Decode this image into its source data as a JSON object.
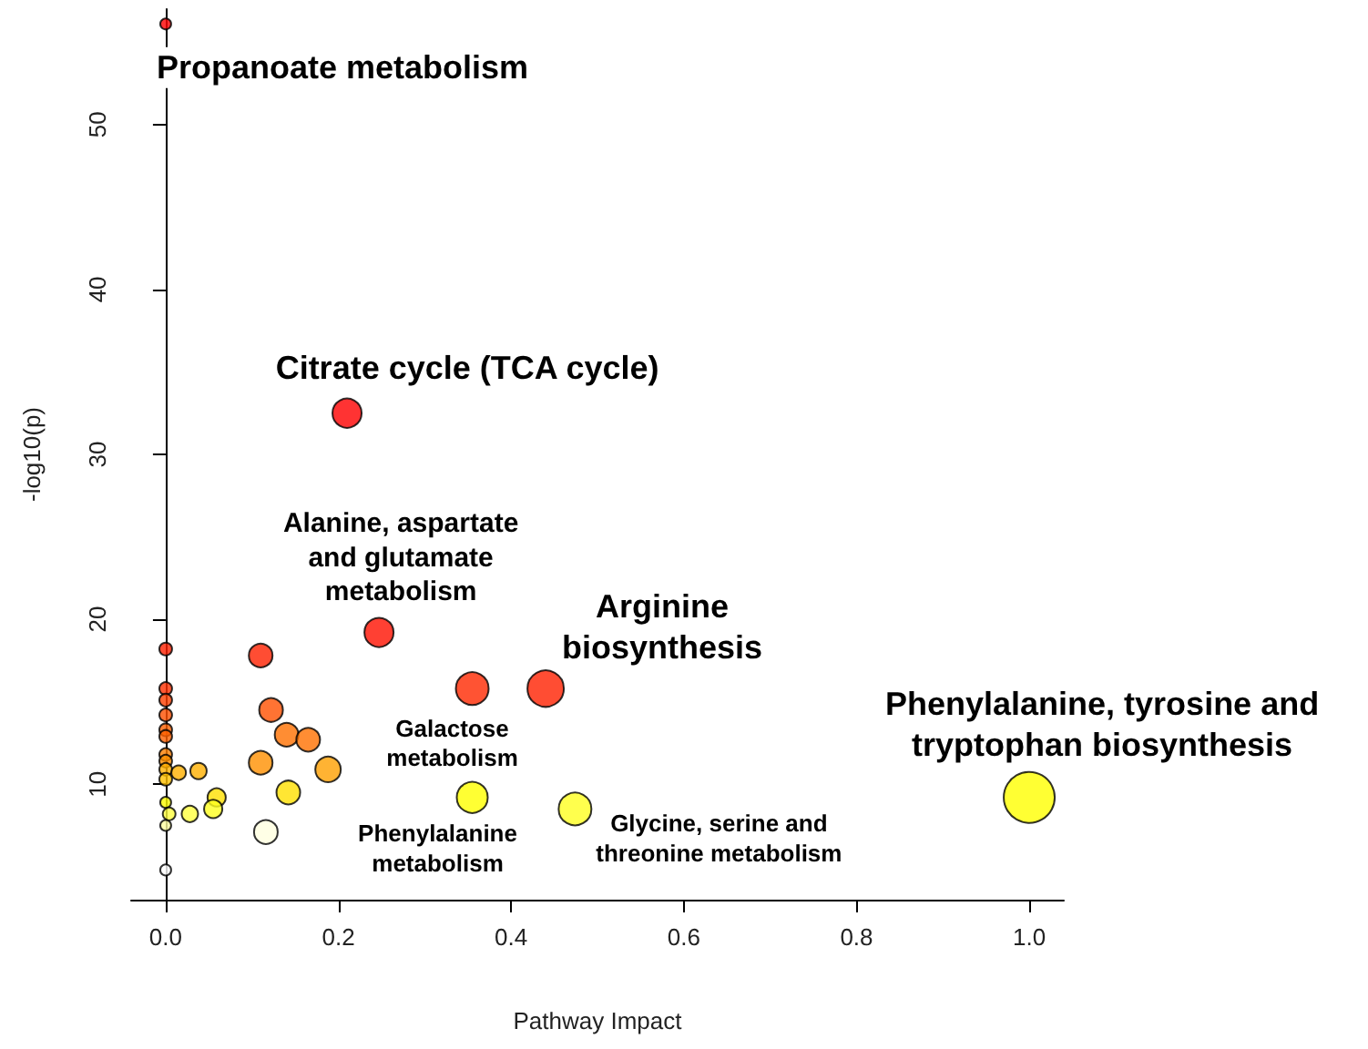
{
  "chart_data": {
    "type": "bubble",
    "xlabel": "Pathway Impact",
    "ylabel": "-log10(p)",
    "x": [
      0,
      0.21,
      0.247,
      0.44,
      0.355,
      0,
      0.11,
      0,
      0,
      0,
      0.122,
      0,
      0,
      0.14,
      0.165,
      0,
      0,
      0.11,
      0.188,
      0,
      0.015,
      0.038,
      0,
      0.059,
      0.142,
      0.355,
      1.0,
      0,
      0.055,
      0.474,
      0.004,
      0.028,
      0,
      0.116,
      0
    ],
    "values": [
      56.1,
      32.5,
      19.2,
      15.8,
      15.8,
      18.2,
      17.8,
      15.8,
      15.1,
      14.2,
      14.5,
      13.3,
      12.9,
      13.0,
      12.7,
      11.8,
      11.4,
      11.3,
      10.9,
      10.9,
      10.7,
      10.8,
      10.3,
      9.2,
      9.5,
      9.2,
      9.2,
      8.9,
      8.5,
      8.5,
      8.2,
      8.2,
      7.5,
      7.1,
      4.8
    ],
    "sizes": [
      0.046,
      0.327,
      0.327,
      0.51,
      0.413,
      0.0625,
      0.216,
      0.0625,
      0.0625,
      0.0625,
      0.216,
      0.0625,
      0.0625,
      0.216,
      0.216,
      0.0625,
      0.0625,
      0.216,
      0.25,
      0.0625,
      0.082,
      0.103,
      0.0625,
      0.128,
      0.216,
      0.369,
      1,
      0.046,
      0.128,
      0.413,
      0.0625,
      0.103,
      0.046,
      0.216,
      0.046
    ],
    "colors": [
      "#ff0000",
      "#ff0000",
      "#ff1000",
      "#ff2000",
      "#ff2800",
      "#ff2000",
      "#ff2000",
      "#ff3000",
      "#ff4000",
      "#ff5000",
      "#ff5000",
      "#ff6000",
      "#ff6000",
      "#ff7000",
      "#ff7000",
      "#ff8000",
      "#ff9000",
      "#ff9000",
      "#ffa000",
      "#ffb000",
      "#ffb000",
      "#ffb000",
      "#ffc000",
      "#ffe000",
      "#ffe000",
      "#ffff00",
      "#ffff00",
      "#ffff00",
      "#ffff20",
      "#ffff20",
      "#ffff40",
      "#ffff40",
      "#ffffa0",
      "#ffffe0",
      "#ffffff"
    ],
    "xlim": [
      -0.04,
      1.04
    ],
    "ylim": [
      3,
      57
    ],
    "xticks": [
      {
        "value": 0,
        "label": "0.0"
      },
      {
        "value": 0.2,
        "label": "0.2"
      },
      {
        "value": 0.4,
        "label": "0.4"
      },
      {
        "value": 0.6,
        "label": "0.6"
      },
      {
        "value": 0.8,
        "label": "0.8"
      },
      {
        "value": 1,
        "label": "1.0"
      }
    ],
    "yticks": [
      10,
      20,
      30,
      40,
      50
    ],
    "grid": false,
    "marker": "circle",
    "annotations": [
      {
        "text": "Propanoate metabolism",
        "x": 0,
        "y": 56.1
      },
      {
        "text": "Citrate cycle (TCA cycle)",
        "x": 0.21,
        "y": 32.5
      },
      {
        "text": "Alanine, aspartate\nand glutamate\nmetabolism",
        "x": 0.247,
        "y": 19.2
      },
      {
        "text": "Arginine\nbiosynthesis",
        "x": 0.44,
        "y": 15.8
      },
      {
        "text": "Galactose\nmetabolism",
        "x": 0.355,
        "y": 15.8
      },
      {
        "text": "Phenylalanine\nmetabolism",
        "x": 0.355,
        "y": 9.2
      },
      {
        "text": "Glycine, serine and\nthreonine metabolism",
        "x": 0.474,
        "y": 8.5
      },
      {
        "text": "Phenylalanine, tyrosine and\ntryptophan biosynthesis",
        "x": 1.0,
        "y": 9.2
      }
    ]
  }
}
